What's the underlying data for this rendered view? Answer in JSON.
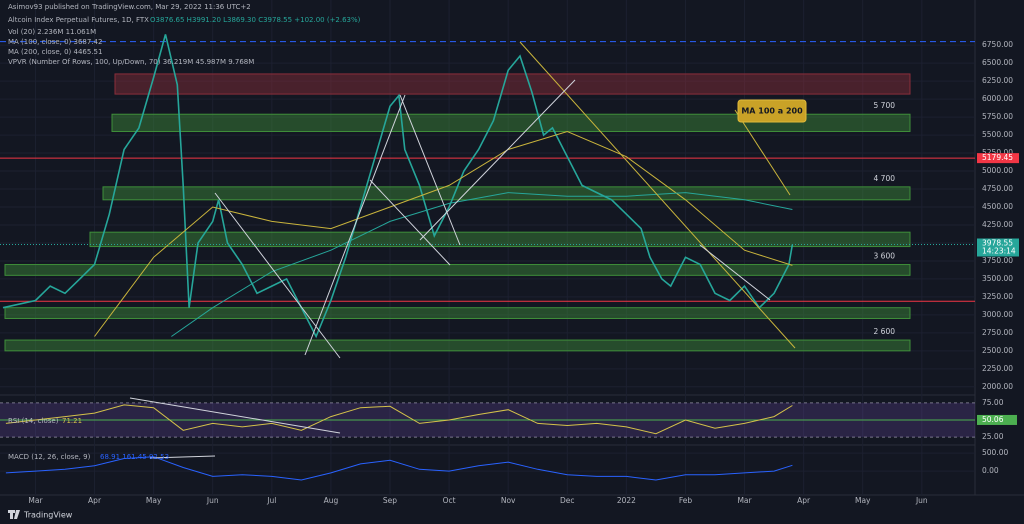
{
  "header": {
    "publisher": "Asimov93 published on TradingView.com, Mar 29, 2022 11:36 UTC+2",
    "symbol": "Altcoin Index Perpetual Futures, 1D, FTX",
    "ohlc": "O3876.65 H3991.20 L3869.30 C3978.55 +102.00 (+2.63%)"
  },
  "footer": {
    "brand": "TradingView"
  },
  "chart_data": [
    {
      "type": "line",
      "indicators": [
        "Vol (20)  2.236M  11.061M",
        "MA (100, close, 0)  3687.42",
        "MA (200, close, 0)  4465.51",
        "VPVR (Number Of Rows, 100, Up/Down, 70)  36.219M  45.987M  9.768M"
      ],
      "xlim": [
        -0.6,
        15.9
      ],
      "xticks": [
        {
          "value": 0,
          "label": "Mar"
        },
        {
          "value": 1,
          "label": "Apr"
        },
        {
          "value": 2,
          "label": "May"
        },
        {
          "value": 3,
          "label": "Jun"
        },
        {
          "value": 4,
          "label": "Jul"
        },
        {
          "value": 5,
          "label": "Aug"
        },
        {
          "value": 6,
          "label": "Sep"
        },
        {
          "value": 7,
          "label": "Oct"
        },
        {
          "value": 8,
          "label": "Nov"
        },
        {
          "value": 9,
          "label": "Dec"
        },
        {
          "value": 10,
          "label": "2022"
        },
        {
          "value": 11,
          "label": "Feb"
        },
        {
          "value": 12,
          "label": "Mar"
        },
        {
          "value": 13,
          "label": "Apr"
        },
        {
          "value": 14,
          "label": "May"
        },
        {
          "value": 15,
          "label": "Jun"
        }
      ],
      "ylim": [
        1900,
        7100
      ],
      "yticks": [
        {
          "value": 2000,
          "label": "2000.00"
        },
        {
          "value": 2250,
          "label": "2250.00"
        },
        {
          "value": 2500,
          "label": "2500.00"
        },
        {
          "value": 2750,
          "label": "2750.00"
        },
        {
          "value": 3000,
          "label": "3000.00"
        },
        {
          "value": 3250,
          "label": "3250.00"
        },
        {
          "value": 3500,
          "label": "3500.00"
        },
        {
          "value": 3750,
          "label": "3750.00"
        },
        {
          "value": 4000,
          "label": "4000.00"
        },
        {
          "value": 4250,
          "label": "4250.00"
        },
        {
          "value": 4500,
          "label": "4500.00"
        },
        {
          "value": 4750,
          "label": "4750.00"
        },
        {
          "value": 5000,
          "label": "5000.00"
        },
        {
          "value": 5250,
          "label": "5250.00"
        },
        {
          "value": 5500,
          "label": "5500.00"
        },
        {
          "value": 5750,
          "label": "5750.00"
        },
        {
          "value": 6000,
          "label": "6000.00"
        },
        {
          "value": 6250,
          "label": "6250.00"
        },
        {
          "value": 6500,
          "label": "6500.00"
        },
        {
          "value": 6750,
          "label": "6750.00"
        }
      ],
      "series": [
        {
          "color": "#26a69a",
          "x": [
            -0.55,
            0,
            0.25,
            0.5,
            0.75,
            1,
            1.25,
            1.5,
            1.75,
            2,
            2.2,
            2.4,
            2.5,
            2.6,
            2.75,
            3,
            3.1,
            3.25,
            3.5,
            3.75,
            4,
            4.25,
            4.5,
            4.75,
            5,
            5.25,
            5.5,
            5.75,
            6,
            6.15,
            6.25,
            6.5,
            6.75,
            7,
            7.25,
            7.5,
            7.75,
            8,
            8.2,
            8.4,
            8.6,
            8.75,
            9,
            9.25,
            9.5,
            9.75,
            10,
            10.25,
            10.4,
            10.6,
            10.75,
            11,
            11.25,
            11.5,
            11.75,
            12,
            12.25,
            12.5,
            12.75,
            12.81
          ],
          "values": [
            3100,
            3200,
            3400,
            3300,
            3500,
            3700,
            4400,
            5300,
            5600,
            6300,
            6900,
            6200,
            4800,
            3100,
            4000,
            4300,
            4600,
            4000,
            3700,
            3300,
            3400,
            3500,
            3100,
            2700,
            3200,
            3800,
            4500,
            5200,
            5900,
            6050,
            5300,
            4800,
            4100,
            4500,
            5000,
            5300,
            5700,
            6400,
            6600,
            6100,
            5500,
            5600,
            5200,
            4800,
            4700,
            4600,
            4400,
            4200,
            3800,
            3500,
            3400,
            3800,
            3700,
            3300,
            3200,
            3400,
            3100,
            3300,
            3700,
            3978.55
          ]
        },
        {
          "name": "MA (100, close, 0)",
          "color": "#c9b43c",
          "x": [
            1,
            2,
            3,
            4,
            5,
            6,
            7,
            8,
            9,
            10,
            11,
            12,
            12.81
          ],
          "values": [
            2700,
            3800,
            4500,
            4300,
            4200,
            4500,
            4800,
            5300,
            5550,
            5200,
            4600,
            3900,
            3687.42
          ]
        },
        {
          "name": "MA (200, close, 0)",
          "color": "#26a69a",
          "x": [
            2.3,
            3,
            4,
            5,
            6,
            7,
            8,
            9,
            10,
            11,
            12,
            12.81
          ],
          "values": [
            2700,
            3100,
            3600,
            3900,
            4300,
            4550,
            4700,
            4650,
            4650,
            4700,
            4600,
            4465.51
          ]
        }
      ],
      "zones": [
        {
          "from": 6070,
          "to": 6350,
          "color": "#8b2e3a"
        },
        {
          "from": 5550,
          "to": 5790,
          "color": "#3f8f3a",
          "label": "5 700"
        },
        {
          "from": 4600,
          "to": 4780,
          "color": "#3f8f3a",
          "label": "4 700"
        },
        {
          "from": 3950,
          "to": 4150,
          "color": "#3f8f3a"
        },
        {
          "from": 3550,
          "to": 3700,
          "color": "#3f8f3a",
          "label": "3 600"
        },
        {
          "from": 2950,
          "to": 3100,
          "color": "#3f8f3a"
        },
        {
          "from": 2500,
          "to": 2650,
          "color": "#3f8f3a",
          "label": "2 600"
        }
      ],
      "hlines": [
        {
          "value": 5179.45,
          "color": "#f23645",
          "labeled": true
        },
        {
          "value": 3190,
          "color": "#f23645"
        },
        {
          "value": 6800,
          "color": "#2962ff",
          "dashed": true
        }
      ],
      "last": 3978.55,
      "countdown": "14:23:14",
      "annotation": "MA 100 a 200"
    },
    {
      "type": "line",
      "title": "RSI (14, close)",
      "value": 71.21,
      "ylim": [
        15,
        85
      ],
      "yticks": [
        {
          "value": 75,
          "label": "75.00"
        },
        {
          "value": 25,
          "label": "25.00"
        }
      ],
      "midline": 50.06,
      "series": [
        {
          "color": "#d4c24a",
          "x": [
            -0.5,
            0,
            0.5,
            1,
            1.5,
            2,
            2.5,
            3,
            3.5,
            4,
            4.5,
            5,
            5.5,
            6,
            6.5,
            7,
            7.5,
            8,
            8.5,
            9,
            9.5,
            10,
            10.5,
            11,
            11.5,
            12,
            12.5,
            12.81
          ],
          "values": [
            45,
            50,
            55,
            60,
            72,
            68,
            35,
            45,
            40,
            45,
            35,
            55,
            68,
            70,
            45,
            50,
            58,
            65,
            45,
            42,
            45,
            40,
            30,
            50,
            38,
            45,
            55,
            71.21
          ]
        }
      ]
    },
    {
      "type": "line",
      "title": "MACD (12, 26, close, 9)",
      "values_text": "68.91  161.45  92.53",
      "ylim": [
        -640,
        700
      ],
      "yticks": [
        {
          "value": 500,
          "label": "500.00"
        },
        {
          "value": 0,
          "label": "0.00"
        }
      ],
      "series": [
        {
          "color": "#2962ff",
          "x": [
            -0.5,
            0,
            0.5,
            1,
            1.5,
            2,
            2.5,
            3,
            3.5,
            4,
            4.5,
            5,
            5.5,
            6,
            6.5,
            7,
            7.5,
            8,
            8.5,
            9,
            9.5,
            10,
            10.5,
            11,
            11.5,
            12,
            12.5,
            12.81
          ],
          "values": [
            -50,
            0,
            50,
            150,
            350,
            400,
            100,
            -150,
            -100,
            -150,
            -250,
            -50,
            200,
            300,
            50,
            0,
            150,
            250,
            50,
            -100,
            -150,
            -150,
            -250,
            -100,
            -100,
            -50,
            0,
            161.45
          ]
        }
      ]
    }
  ]
}
